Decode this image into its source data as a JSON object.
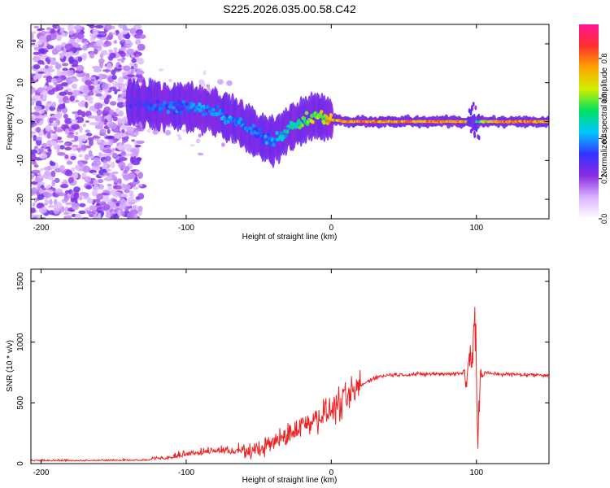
{
  "title": "S225.2026.035.00.58.C42",
  "chart_data": [
    {
      "type": "heatmap",
      "title": "S225.2026.035.00.58.C42",
      "xlabel": "Height of straight line (km)",
      "ylabel": "Frequency (Hz)",
      "xlim": [
        -207,
        150
      ],
      "ylim": [
        -25,
        25
      ],
      "xticks": [
        -200,
        -100,
        0,
        100
      ],
      "yticks": [
        -20,
        -10,
        0,
        10,
        20
      ],
      "colorbar": {
        "label": "Normalized spectral amplitude",
        "range": [
          0,
          0.97
        ],
        "ticks": [
          "0.0",
          "0.2",
          "0.4",
          "0.6",
          "0.8"
        ],
        "tick_values": [
          0,
          0.2,
          0.4,
          0.6,
          0.8
        ],
        "colors": [
          "#ffffff",
          "#d9b3ff",
          "#8a2be2",
          "#3333ff",
          "#00c8ff",
          "#00e060",
          "#d0f000",
          "#ffa500",
          "#ff3030",
          "#ff1493"
        ]
      },
      "ridge": {
        "x": [
          -140,
          -120,
          -100,
          -80,
          -65,
          -50,
          -40,
          -30,
          -20,
          -10,
          0,
          10,
          20,
          40,
          60,
          80,
          92,
          96,
          100,
          110,
          130,
          150
        ],
        "freq": [
          5,
          4,
          4,
          2.5,
          0,
          -3.5,
          -5,
          -2,
          0,
          1.5,
          0.5,
          0,
          0,
          0,
          0,
          0,
          0,
          0,
          0,
          0,
          0,
          0
        ],
        "amplitude": [
          0.3,
          0.38,
          0.42,
          0.44,
          0.42,
          0.4,
          0.45,
          0.52,
          0.6,
          0.68,
          0.8,
          0.85,
          0.88,
          0.9,
          0.9,
          0.9,
          0.85,
          0.5,
          0.55,
          0.85,
          0.88,
          0.9
        ]
      },
      "noise_x_range": [
        -207,
        -140
      ]
    },
    {
      "type": "line",
      "xlabel": "Height of straight line (km)",
      "ylabel": "SNR (10 * v/v)",
      "xlim": [
        -207,
        150
      ],
      "ylim": [
        0,
        1600
      ],
      "xticks": [
        -200,
        -100,
        0,
        100
      ],
      "yticks": [
        0,
        500,
        1000,
        1500
      ],
      "line_color": "#ee2222",
      "series": [
        {
          "name": "SNR",
          "x": [
            -207,
            -180,
            -150,
            -125,
            -110,
            -100,
            -90,
            -80,
            -70,
            -60,
            -50,
            -40,
            -30,
            -20,
            -10,
            0,
            10,
            20,
            30,
            40,
            60,
            80,
            90,
            94,
            97,
            99,
            101,
            103,
            106,
            120,
            140,
            150
          ],
          "y": [
            20,
            20,
            22,
            25,
            40,
            60,
            70,
            90,
            80,
            90,
            120,
            170,
            240,
            320,
            380,
            440,
            520,
            640,
            710,
            730,
            735,
            740,
            740,
            820,
            950,
            1100,
            300,
            700,
            745,
            735,
            730,
            730
          ]
        }
      ]
    }
  ]
}
